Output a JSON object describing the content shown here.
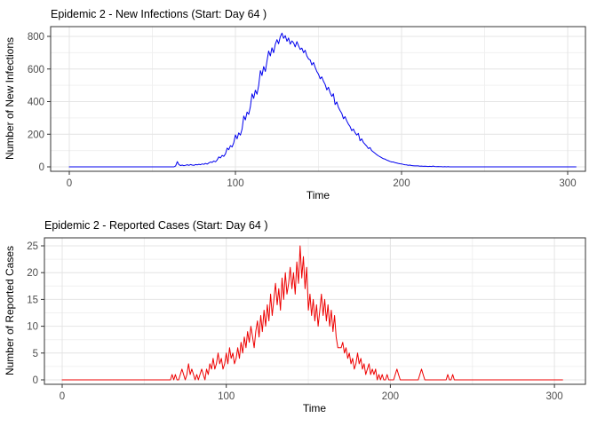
{
  "style": {
    "background": "#FFFFFF",
    "panel_border": "#333333",
    "tick_mark": "#333333",
    "grid_major": "#E4E4E4",
    "grid_minor": "#F0F0F0",
    "tick_label_color": "#4D4D4D",
    "title_color": "#000000"
  },
  "chart_data": [
    {
      "type": "line",
      "title": "Epidemic 2 - New Infections (Start: Day 64 )",
      "xlabel": "Time",
      "ylabel": "Number of New Infections",
      "series_name": "new-infections",
      "line_color": "#0000EE",
      "start_day_annotation": 64,
      "x_start": 0,
      "x_step": 1,
      "x_ticks": [
        0,
        100,
        200,
        300
      ],
      "x_minor_ticks": [
        50,
        150,
        250
      ],
      "y_ticks": [
        0,
        200,
        400,
        600,
        800
      ],
      "y_minor_ticks": [
        100,
        300,
        500,
        700
      ],
      "xlim": [
        -11,
        311
      ],
      "ylim": [
        -27,
        860
      ],
      "grid": true,
      "legend": "none",
      "y": [
        0,
        0,
        0,
        0,
        0,
        0,
        0,
        0,
        0,
        0,
        0,
        0,
        0,
        0,
        0,
        0,
        0,
        0,
        0,
        0,
        0,
        0,
        0,
        0,
        0,
        0,
        0,
        0,
        0,
        0,
        0,
        0,
        0,
        0,
        0,
        0,
        0,
        0,
        0,
        0,
        0,
        0,
        0,
        0,
        0,
        0,
        0,
        0,
        0,
        0,
        0,
        0,
        0,
        0,
        0,
        0,
        0,
        0,
        0,
        0,
        0,
        0,
        0,
        0,
        6,
        32,
        13,
        8,
        11,
        7,
        10,
        13,
        9,
        14,
        11,
        9,
        14,
        12,
        16,
        13,
        18,
        15,
        21,
        17,
        24,
        30,
        27,
        36,
        31,
        42,
        61,
        55,
        70,
        64,
        80,
        115,
        105,
        130,
        122,
        148,
        196,
        172,
        208,
        195,
        232,
        312,
        288,
        336,
        322,
        368,
        448,
        420,
        470,
        445,
        500,
        590,
        560,
        615,
        585,
        648,
        710,
        680,
        730,
        700,
        752,
        780,
        755,
        798,
        820,
        788,
        805,
        770,
        790,
        752,
        772,
        760,
        735,
        768,
        742,
        720,
        728,
        700,
        715,
        680,
        662,
        655,
        625,
        640,
        610,
        585,
        568,
        540,
        552,
        525,
        505,
        472,
        488,
        455,
        432,
        448,
        382,
        398,
        365,
        345,
        328,
        295,
        308,
        282,
        262,
        248,
        222,
        232,
        210,
        195,
        205,
        160,
        172,
        150,
        138,
        128,
        112,
        118,
        100,
        92,
        84,
        75,
        68,
        62,
        56,
        50,
        48,
        42,
        38,
        34,
        30,
        30,
        26,
        24,
        21,
        19,
        18,
        15,
        13,
        12,
        10,
        11,
        8,
        7,
        6,
        6,
        6,
        4,
        5,
        3,
        4,
        3,
        2,
        3,
        2,
        5,
        2,
        1,
        2,
        1,
        1,
        0,
        1,
        0,
        1,
        0,
        0,
        0,
        0,
        0,
        0,
        0,
        0,
        0,
        0,
        0,
        0,
        0,
        0,
        0,
        0,
        0,
        0,
        0,
        0,
        0,
        0,
        0,
        0,
        0,
        0,
        0,
        0,
        0,
        0,
        0,
        0,
        0,
        0,
        0,
        0,
        0,
        0,
        0,
        0,
        0,
        0,
        0,
        0,
        0,
        0,
        0,
        0,
        0,
        0,
        0,
        0,
        0,
        0,
        0,
        0,
        0,
        0,
        0,
        0,
        0,
        0,
        0,
        0,
        0,
        0,
        0,
        0,
        0,
        0,
        0,
        0,
        0,
        0,
        0,
        0,
        0
      ]
    },
    {
      "type": "line",
      "title": "Epidemic 2 - Reported Cases (Start: Day 64 )",
      "xlabel": "Time",
      "ylabel": "Number of Reported Cases",
      "series_name": "reported-cases",
      "line_color": "#EE0000",
      "start_day_annotation": 64,
      "x_start": 0,
      "x_step": 1,
      "x_ticks": [
        0,
        100,
        200,
        300
      ],
      "x_minor_ticks": [
        50,
        150,
        250
      ],
      "y_ticks": [
        0,
        5,
        10,
        15,
        20,
        25
      ],
      "y_minor_ticks": [
        2.5,
        7.5,
        12.5,
        17.5,
        22.5
      ],
      "xlim": [
        -11,
        318
      ],
      "ylim": [
        -1.2,
        26.5
      ],
      "grid": true,
      "legend": "none",
      "y": [
        0,
        0,
        0,
        0,
        0,
        0,
        0,
        0,
        0,
        0,
        0,
        0,
        0,
        0,
        0,
        0,
        0,
        0,
        0,
        0,
        0,
        0,
        0,
        0,
        0,
        0,
        0,
        0,
        0,
        0,
        0,
        0,
        0,
        0,
        0,
        0,
        0,
        0,
        0,
        0,
        0,
        0,
        0,
        0,
        0,
        0,
        0,
        0,
        0,
        0,
        0,
        0,
        0,
        0,
        0,
        0,
        0,
        0,
        0,
        0,
        0,
        0,
        0,
        0,
        0,
        0,
        0,
        1,
        0,
        1,
        0,
        0,
        1,
        2,
        1,
        0,
        1,
        3,
        1,
        2,
        1,
        0,
        1,
        0,
        1,
        2,
        1,
        0,
        2,
        1,
        3,
        2,
        4,
        2,
        3,
        5,
        3,
        4,
        2,
        3,
        5,
        3,
        6,
        4,
        5,
        3,
        4,
        6,
        4,
        7,
        5,
        8,
        6,
        9,
        7,
        10,
        8,
        6,
        9,
        11,
        8,
        12,
        9,
        13,
        10,
        14,
        11,
        16,
        12,
        15,
        18,
        14,
        17,
        13,
        19,
        15,
        20,
        16,
        18,
        21,
        17,
        20,
        16,
        22,
        18,
        25,
        19,
        23,
        17,
        21,
        13,
        16,
        12,
        15,
        11,
        14,
        10,
        13,
        16,
        12,
        15,
        11,
        14,
        10,
        13,
        9,
        12,
        8,
        6,
        6,
        6,
        7,
        5,
        6,
        4,
        5,
        3,
        4,
        2,
        3,
        5,
        3,
        4,
        2,
        3,
        1,
        2,
        3,
        1,
        2,
        1,
        2,
        0,
        1,
        0,
        1,
        0,
        0,
        1,
        0,
        0,
        0,
        0,
        1,
        2,
        1,
        0,
        0,
        0,
        0,
        0,
        0,
        0,
        0,
        0,
        0,
        0,
        0,
        1,
        2,
        1,
        0,
        0,
        0,
        0,
        0,
        0,
        0,
        0,
        0,
        0,
        0,
        0,
        0,
        0,
        1,
        0,
        0,
        1,
        0,
        0,
        0,
        0,
        0,
        0,
        0,
        0,
        0,
        0,
        0,
        0,
        0,
        0,
        0,
        0,
        0,
        0,
        0,
        0,
        0,
        0,
        0,
        0,
        0,
        0,
        0,
        0,
        0,
        0,
        0,
        0,
        0,
        0,
        0,
        0,
        0,
        0,
        0,
        0,
        0,
        0,
        0,
        0,
        0,
        0,
        0,
        0,
        0,
        0,
        0,
        0,
        0,
        0,
        0,
        0,
        0,
        0,
        0,
        0,
        0,
        0,
        0,
        0,
        0,
        0,
        0
      ]
    }
  ]
}
